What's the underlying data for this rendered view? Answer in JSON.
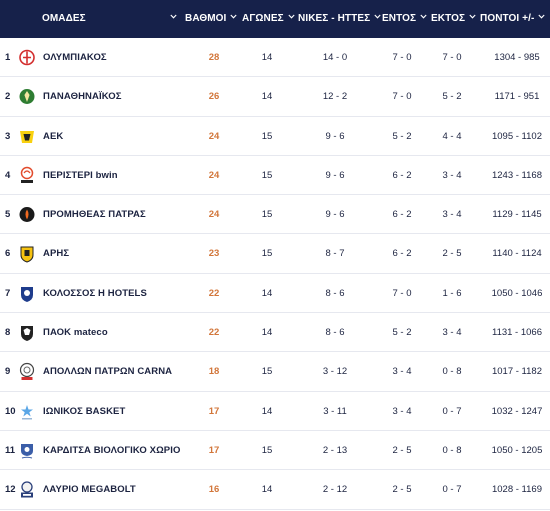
{
  "header": {
    "team": "ΟΜΑΔΕΣ",
    "points": "ΒΑΘΜΟΙ",
    "games": "ΑΓΩΝΕΣ",
    "wins_losses": "ΝΙΚΕΣ - ΗΤΤΕΣ",
    "home": "ΕΝΤΟΣ",
    "away": "ΕΚΤΟΣ",
    "score": "ΠΟΝΤΟΙ +/-"
  },
  "colors": {
    "header_bg": "#16214a",
    "points_accent": "#d2763a"
  },
  "rows": [
    {
      "rank": "1",
      "team": "ΟΛΥΜΠΙΑΚΟΣ",
      "logo": "olympiacos-logo",
      "points": "28",
      "games": "14",
      "wl": "14 - 0",
      "home": "7 - 0",
      "away": "7 - 0",
      "score": "1304 - 985"
    },
    {
      "rank": "2",
      "team": "ΠΑΝΑΘΗΝΑΪΚΟΣ",
      "logo": "panathinaikos-logo",
      "points": "26",
      "games": "14",
      "wl": "12 - 2",
      "home": "7 - 0",
      "away": "5 - 2",
      "score": "1171 - 951"
    },
    {
      "rank": "3",
      "team": "ΑΕΚ",
      "logo": "aek-logo",
      "points": "24",
      "games": "15",
      "wl": "9 - 6",
      "home": "5 - 2",
      "away": "4 - 4",
      "score": "1095 - 1102"
    },
    {
      "rank": "4",
      "team": "ΠΕΡΙΣΤΕΡΙ bwin",
      "logo": "peristeri-logo",
      "points": "24",
      "games": "15",
      "wl": "9 - 6",
      "home": "6 - 2",
      "away": "3 - 4",
      "score": "1243 - 1168"
    },
    {
      "rank": "5",
      "team": "ΠΡΟΜΗΘΕΑΣ ΠΑΤΡΑΣ",
      "logo": "promitheas-logo",
      "points": "24",
      "games": "15",
      "wl": "9 - 6",
      "home": "6 - 2",
      "away": "3 - 4",
      "score": "1129 - 1145"
    },
    {
      "rank": "6",
      "team": "ΑΡΗΣ",
      "logo": "aris-logo",
      "points": "23",
      "games": "15",
      "wl": "8 - 7",
      "home": "6 - 2",
      "away": "2 - 5",
      "score": "1140 - 1124"
    },
    {
      "rank": "7",
      "team": "ΚΟΛΟΣΣΟΣ Η HOTELS",
      "logo": "kolossos-logo",
      "points": "22",
      "games": "14",
      "wl": "8 - 6",
      "home": "7 - 0",
      "away": "1 - 6",
      "score": "1050 - 1046"
    },
    {
      "rank": "8",
      "team": "ΠΑΟΚ mateco",
      "logo": "paok-logo",
      "points": "22",
      "games": "14",
      "wl": "8 - 6",
      "home": "5 - 2",
      "away": "3 - 4",
      "score": "1131 - 1066"
    },
    {
      "rank": "9",
      "team": "ΑΠΟΛΛΩΝ ΠΑΤΡΩΝ CARNA",
      "logo": "apollon-logo",
      "points": "18",
      "games": "15",
      "wl": "3 - 12",
      "home": "3 - 4",
      "away": "0 - 8",
      "score": "1017 - 1182"
    },
    {
      "rank": "10",
      "team": "ΙΩΝΙΚΟΣ BASKET",
      "logo": "ionikos-logo",
      "points": "17",
      "games": "14",
      "wl": "3 - 11",
      "home": "3 - 4",
      "away": "0 - 7",
      "score": "1032 - 1247"
    },
    {
      "rank": "11",
      "team": "ΚΑΡΔΙΤΣΑ ΒΙΟΛΟΓΙΚΟ ΧΩΡΙΟ",
      "logo": "karditsa-logo",
      "points": "17",
      "games": "15",
      "wl": "2 - 13",
      "home": "2 - 5",
      "away": "0 - 8",
      "score": "1050 - 1205"
    },
    {
      "rank": "12",
      "team": "ΛΑΥΡΙΟ MEGABOLT",
      "logo": "lavrio-logo",
      "points": "16",
      "games": "14",
      "wl": "2 - 12",
      "home": "2 - 5",
      "away": "0 - 7",
      "score": "1028 - 1169"
    }
  ]
}
